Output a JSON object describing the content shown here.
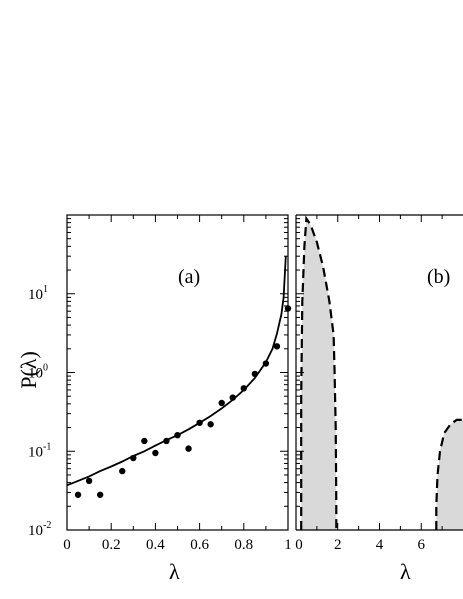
{
  "chart_data": [
    {
      "panel": "(a)",
      "type": "scatter",
      "xlabel": "λ",
      "ylabel": "P(λ)",
      "xlim": [
        0,
        1
      ],
      "ylim": [
        0.01,
        100
      ],
      "y_scale": "log",
      "x_ticks": [
        "0",
        "0.2",
        "0.4",
        "0.6",
        "0.8",
        "1"
      ],
      "x_tick_values": [
        0,
        0.2,
        0.4,
        0.6,
        0.8,
        1
      ],
      "y_ticks": [
        {
          "base": "10",
          "exp": "-2",
          "value": 0.01
        },
        {
          "base": "10",
          "exp": "-1",
          "value": 0.1
        },
        {
          "base": "10",
          "exp": "0",
          "value": 1
        },
        {
          "base": "10",
          "exp": "1",
          "value": 10
        }
      ],
      "series": [
        {
          "style": "markers",
          "x": [
            0.05,
            0.1,
            0.15,
            0.25,
            0.3,
            0.35,
            0.4,
            0.45,
            0.5,
            0.55,
            0.6,
            0.65,
            0.7,
            0.75,
            0.8,
            0.85,
            0.9,
            0.95,
            1.0
          ],
          "y": [
            0.028,
            0.042,
            0.028,
            0.056,
            0.082,
            0.135,
            0.095,
            0.135,
            0.16,
            0.108,
            0.23,
            0.22,
            0.41,
            0.48,
            0.63,
            0.96,
            1.3,
            2.15,
            6.5
          ]
        },
        {
          "style": "solid-line",
          "x": [
            0.0,
            0.05,
            0.1,
            0.15,
            0.2,
            0.25,
            0.3,
            0.35,
            0.4,
            0.45,
            0.5,
            0.55,
            0.6,
            0.65,
            0.7,
            0.75,
            0.8,
            0.85,
            0.9,
            0.93,
            0.95,
            0.97,
            0.98,
            0.99
          ],
          "y": [
            0.037,
            0.042,
            0.048,
            0.056,
            0.064,
            0.074,
            0.087,
            0.1,
            0.118,
            0.138,
            0.16,
            0.19,
            0.23,
            0.28,
            0.35,
            0.45,
            0.6,
            0.85,
            1.35,
            2.0,
            3.1,
            5.5,
            9.0,
            30.0
          ]
        }
      ]
    },
    {
      "panel": "(b)",
      "type": "area",
      "xlabel": "λ",
      "xlim": [
        0,
        8
      ],
      "ylim": [
        0.01,
        100
      ],
      "y_scale": "log",
      "x_ticks": [
        "0",
        "2",
        "4",
        "6"
      ],
      "x_tick_values": [
        0,
        2,
        4,
        6
      ],
      "series": [
        {
          "style": "dashed-line-shaded",
          "x": [
            0.25,
            0.25,
            0.3,
            0.4,
            0.5,
            0.7,
            1.0,
            1.3,
            1.6,
            1.8,
            1.85,
            1.9,
            1.92,
            1.93,
            1.93
          ],
          "y": [
            0.01,
            0.5,
            8,
            40,
            90,
            75,
            45,
            22,
            8,
            3,
            1,
            0.2,
            0.05,
            0.02,
            0.01
          ]
        },
        {
          "style": "dashed-line-shaded",
          "x": [
            6.72,
            6.72,
            6.78,
            6.9,
            7.1,
            7.4,
            7.7,
            8.0
          ],
          "y": [
            0.01,
            0.02,
            0.05,
            0.1,
            0.17,
            0.22,
            0.25,
            0.25
          ]
        }
      ]
    }
  ]
}
